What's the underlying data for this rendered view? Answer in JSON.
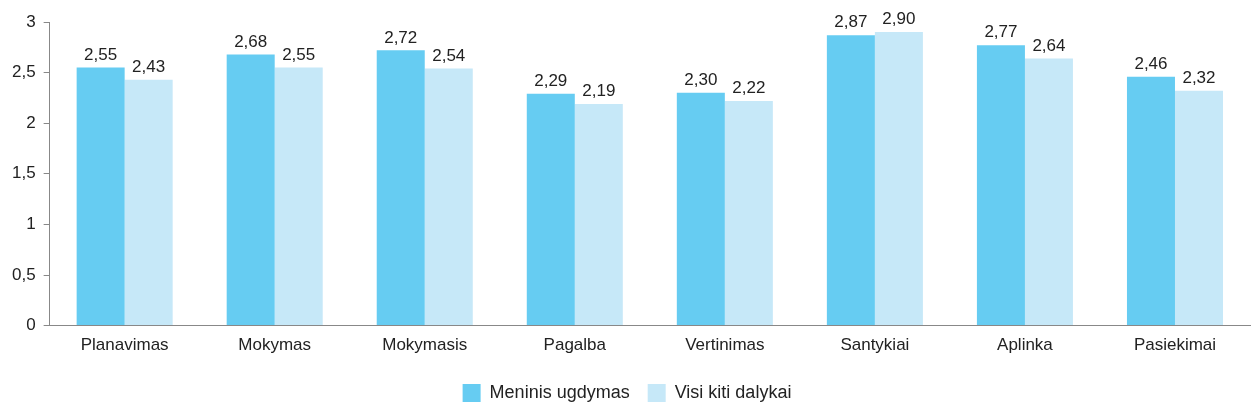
{
  "chart_data": {
    "type": "bar",
    "categories": [
      "Planavimas",
      "Mokymas",
      "Mokymasis",
      "Pagalba",
      "Vertinimas",
      "Santykiai",
      "Aplinka",
      "Pasiekimai"
    ],
    "series": [
      {
        "name": "Meninis ugdymas",
        "color": "#66ccf2",
        "values": [
          2.55,
          2.68,
          2.72,
          2.29,
          2.3,
          2.87,
          2.77,
          2.46
        ],
        "value_labels": [
          "2,55",
          "2,68",
          "2,72",
          "2,29",
          "2,30",
          "2,87",
          "2,77",
          "2,46"
        ]
      },
      {
        "name": "Visi kiti dalykai",
        "color": "#c6e8f8",
        "values": [
          2.43,
          2.55,
          2.54,
          2.19,
          2.22,
          2.9,
          2.64,
          2.32
        ],
        "value_labels": [
          "2,43",
          "2,55",
          "2,54",
          "2,19",
          "2,22",
          "2,90",
          "2,64",
          "2,32"
        ]
      }
    ],
    "ylim": [
      0,
      3
    ],
    "yticks": [
      0,
      {
        "value": 0.5,
        "label": "0,5"
      },
      1,
      {
        "value": 1.5,
        "label": "1,5"
      },
      2,
      {
        "value": 2.5,
        "label": "2,5"
      },
      3
    ],
    "grid": false,
    "legend": "bottom"
  }
}
